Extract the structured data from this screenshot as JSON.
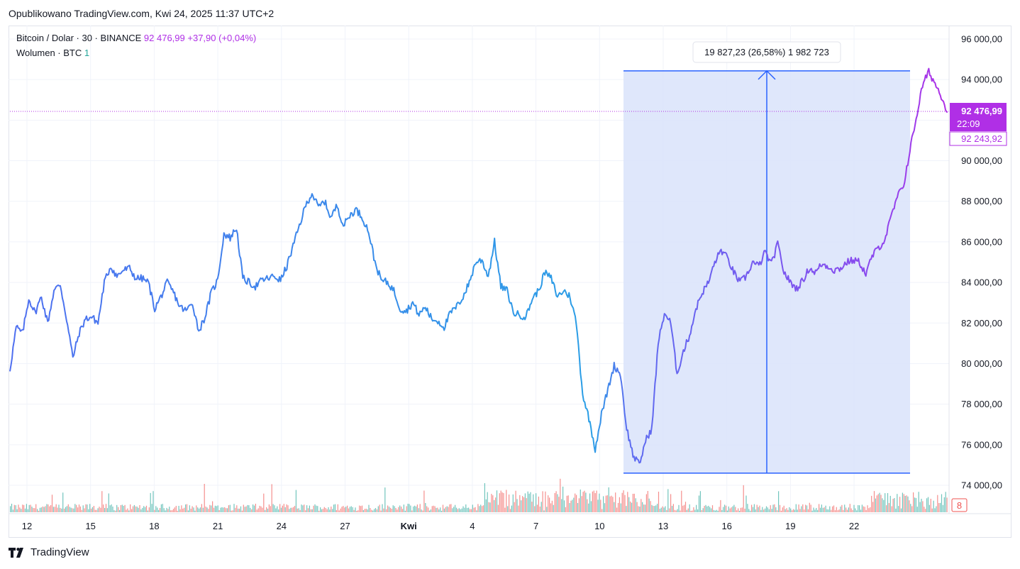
{
  "published": "Opublikowano TradingView.com, Kwi 24, 2025 11:37 UTC+2",
  "legend": {
    "symbol": "Bitcoin / Dolar · 30 · BINANCE",
    "price": "92 476,99",
    "change": "+37,90 (+0,04%)",
    "volume_label": "Wolumen · BTC",
    "volume_value": "1"
  },
  "price_axis": {
    "ticks": [
      "96 000,00",
      "94 000,00",
      "90 000,00",
      "88 000,00",
      "86 000,00",
      "84 000,00",
      "82 000,00",
      "80 000,00",
      "78 000,00",
      "76 000,00",
      "74 000,00"
    ],
    "tick_values": [
      96000,
      94000,
      90000,
      88000,
      86000,
      84000,
      82000,
      80000,
      78000,
      76000,
      74000
    ],
    "current_price_label": "92 476,99",
    "countdown_label": "22:09",
    "secondary_price_label": "92 243,92",
    "volume_badge": "8"
  },
  "time_axis": {
    "labels": [
      "12",
      "15",
      "18",
      "21",
      "24",
      "27",
      "Kwi",
      "4",
      "7",
      "10",
      "13",
      "16",
      "19",
      "22"
    ]
  },
  "measure": {
    "label": "19 827,23 (26,58%) 1 982 723",
    "low": 74600,
    "high": 94430
  },
  "footer": {
    "brand": "TradingView"
  },
  "colors": {
    "line_start": "#1fa3e0",
    "line_mid": "#7b4ff0",
    "line_end": "#b02fe6",
    "measure_fill": "#dce4fb",
    "measure_line": "#2962ff",
    "price_label_bg": "#b02fe6",
    "vol_up": "#26a69a",
    "vol_down": "#ef5350"
  },
  "chart_data": {
    "type": "line",
    "title": "Bitcoin / Dolar · 30 · BINANCE",
    "x_labels": [
      "12",
      "15",
      "18",
      "21",
      "24",
      "27",
      "Kwi",
      "4",
      "7",
      "10",
      "13",
      "16",
      "19",
      "22"
    ],
    "ylim": [
      73200,
      96800
    ],
    "series": [
      {
        "values": [
          79700,
          81800,
          81500,
          83200,
          82500,
          83300,
          82000,
          83600,
          83900,
          82200,
          80300,
          81500,
          82200,
          82300,
          82000,
          84000,
          84800,
          84300,
          84600,
          84700,
          84200,
          84200,
          84000,
          82700,
          83300,
          84000,
          83500,
          82800,
          82600,
          83000,
          81600,
          82300,
          83500,
          84100,
          86400,
          86200,
          86700,
          84200,
          84000,
          83800,
          84100,
          84200,
          84300,
          84100,
          84800,
          85800,
          86800,
          87800,
          88400,
          87700,
          88000,
          87200,
          87800,
          86800,
          87300,
          87600,
          87200,
          86500,
          85000,
          84100,
          84000,
          83600,
          82700,
          82600,
          83000,
          82400,
          82800,
          82200,
          82100,
          81800,
          82500,
          82800,
          83300,
          84000,
          85000,
          85100,
          84300,
          86000,
          83800,
          83600,
          82500,
          82400,
          82300,
          83200,
          83600,
          84500,
          84200,
          83300,
          83600,
          83300,
          82000,
          78500,
          77300,
          75800,
          77500,
          78700,
          79900,
          79500,
          76800,
          75500,
          75000,
          76200,
          76800,
          81000,
          82500,
          82000,
          79500,
          80600,
          81400,
          82700,
          83500,
          84000,
          85000,
          85600,
          85200,
          84500,
          84000,
          84300,
          85000,
          84800,
          85500,
          84900,
          85900,
          84500,
          84000,
          83700,
          84100,
          84700,
          84500,
          84900,
          84800,
          84600,
          84700,
          85000,
          85100,
          85000,
          84400,
          85300,
          85700,
          86100,
          87200,
          88200,
          88800,
          90500,
          92100,
          93700,
          94400,
          93800,
          93200,
          92400
        ]
      }
    ]
  }
}
